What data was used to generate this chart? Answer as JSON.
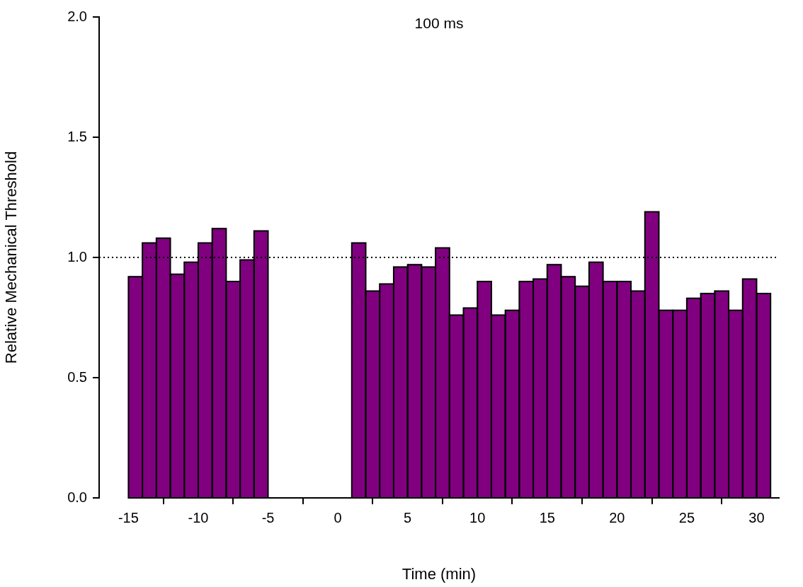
{
  "chart_data": {
    "type": "histogram",
    "title": "100 ms",
    "xlabel": "Time (min)",
    "ylabel": "Relative Mechanical Threshold",
    "bins": [
      -15,
      -14,
      -13,
      -12,
      -11,
      -10,
      -9,
      -8,
      -7,
      -6,
      -5,
      -4,
      -3,
      -2,
      -1,
      0,
      1,
      2,
      3,
      4,
      5,
      6,
      7,
      8,
      9,
      10,
      11,
      12,
      13,
      14,
      15,
      16,
      17,
      18,
      19,
      20,
      21,
      22,
      23,
      24,
      25,
      26,
      27,
      28,
      29,
      30,
      31
    ],
    "values": [
      0.92,
      1.06,
      1.08,
      0.93,
      0.98,
      1.06,
      1.12,
      0.9,
      0.99,
      1.11,
      null,
      null,
      null,
      null,
      null,
      null,
      1.06,
      0.86,
      0.89,
      0.96,
      0.97,
      0.96,
      1.04,
      0.76,
      0.79,
      0.9,
      0.76,
      0.78,
      0.9,
      0.91,
      0.97,
      0.92,
      0.88,
      0.98,
      0.9,
      0.9,
      0.86,
      1.19,
      0.78,
      0.78,
      0.83,
      0.85,
      0.86,
      0.78,
      0.91,
      0.85
    ],
    "color": "#800080",
    "xlim": [
      -17.1,
      31.6
    ],
    "xticks": [
      -15,
      -10,
      -5,
      0,
      5,
      10,
      15,
      20,
      25,
      30
    ],
    "ylim": [
      0,
      2
    ],
    "yticks": [
      {
        "value": 0,
        "label": "0.0"
      },
      {
        "value": 0.5,
        "label": "0.5"
      },
      {
        "value": 1,
        "label": "1.0"
      },
      {
        "value": 1.5,
        "label": "1.5"
      },
      {
        "value": 2,
        "label": "2.0"
      }
    ],
    "ref_lines": [
      {
        "axis": "y",
        "value": 1,
        "color": "#000000",
        "line_style": "dotted"
      }
    ],
    "grid": false,
    "legend": false
  }
}
